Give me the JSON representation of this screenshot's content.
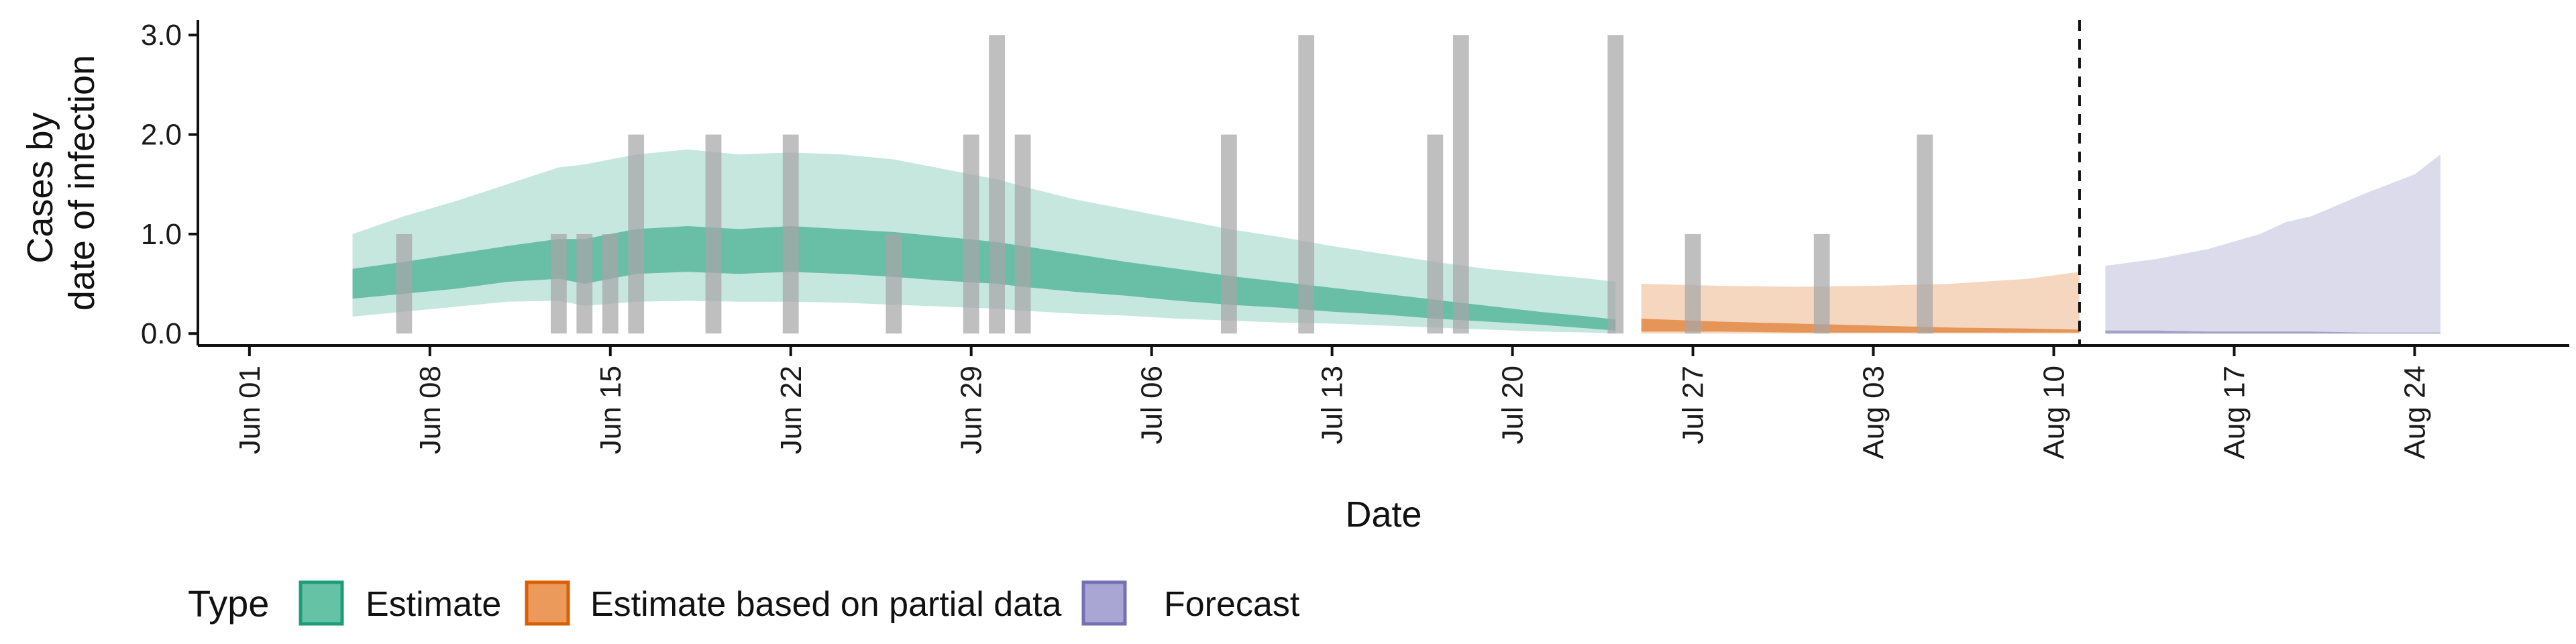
{
  "chart_data": {
    "type": "area",
    "xlabel": "Date",
    "ylabel_lines": [
      "Cases by",
      "date of infection"
    ],
    "xlim": [
      "2020-05-30",
      "2020-08-30"
    ],
    "ylim": [
      -0.12,
      3.15
    ],
    "x_ticks": [
      {
        "date": "2020-06-01",
        "label": "Jun 01"
      },
      {
        "date": "2020-06-08",
        "label": "Jun 08"
      },
      {
        "date": "2020-06-15",
        "label": "Jun 15"
      },
      {
        "date": "2020-06-22",
        "label": "Jun 22"
      },
      {
        "date": "2020-06-29",
        "label": "Jun 29"
      },
      {
        "date": "2020-07-06",
        "label": "Jul 06"
      },
      {
        "date": "2020-07-13",
        "label": "Jul 13"
      },
      {
        "date": "2020-07-20",
        "label": "Jul 20"
      },
      {
        "date": "2020-07-27",
        "label": "Jul 27"
      },
      {
        "date": "2020-08-03",
        "label": "Aug 03"
      },
      {
        "date": "2020-08-10",
        "label": "Aug 10"
      },
      {
        "date": "2020-08-17",
        "label": "Aug 17"
      },
      {
        "date": "2020-08-24",
        "label": "Aug 24"
      }
    ],
    "y_ticks": [
      {
        "value": 0,
        "label": "0.0"
      },
      {
        "value": 1,
        "label": "1.0"
      },
      {
        "value": 2,
        "label": "2.0"
      },
      {
        "value": 3,
        "label": "3.0"
      }
    ],
    "vline_date": "2020-08-11",
    "observed_cases": {
      "color": "#a6a6a6",
      "bars": [
        {
          "date": "2020-06-07",
          "value": 1
        },
        {
          "date": "2020-06-13",
          "value": 1
        },
        {
          "date": "2020-06-14",
          "value": 1
        },
        {
          "date": "2020-06-15",
          "value": 1
        },
        {
          "date": "2020-06-16",
          "value": 2
        },
        {
          "date": "2020-06-19",
          "value": 2
        },
        {
          "date": "2020-06-22",
          "value": 2
        },
        {
          "date": "2020-06-26",
          "value": 1
        },
        {
          "date": "2020-06-29",
          "value": 2
        },
        {
          "date": "2020-06-30",
          "value": 3
        },
        {
          "date": "2020-07-01",
          "value": 2
        },
        {
          "date": "2020-07-09",
          "value": 2
        },
        {
          "date": "2020-07-12",
          "value": 3
        },
        {
          "date": "2020-07-17",
          "value": 2
        },
        {
          "date": "2020-07-18",
          "value": 3
        },
        {
          "date": "2020-07-24",
          "value": 3
        },
        {
          "date": "2020-07-27",
          "value": 1
        },
        {
          "date": "2020-08-01",
          "value": 1
        },
        {
          "date": "2020-08-05",
          "value": 2
        }
      ]
    },
    "series": [
      {
        "name": "Estimate",
        "color": "#1b9e77",
        "dates": [
          "2020-06-05",
          "2020-06-07",
          "2020-06-09",
          "2020-06-11",
          "2020-06-13",
          "2020-06-14",
          "2020-06-16",
          "2020-06-18",
          "2020-06-20",
          "2020-06-22",
          "2020-06-24",
          "2020-06-26",
          "2020-06-28",
          "2020-06-30",
          "2020-07-01",
          "2020-07-03",
          "2020-07-05",
          "2020-07-07",
          "2020-07-09",
          "2020-07-11",
          "2020-07-13",
          "2020-07-15",
          "2020-07-17",
          "2020-07-19",
          "2020-07-21",
          "2020-07-23",
          "2020-07-24"
        ],
        "outer_lower": [
          0.17,
          0.22,
          0.27,
          0.32,
          0.33,
          0.28,
          0.32,
          0.33,
          0.32,
          0.32,
          0.31,
          0.29,
          0.27,
          0.25,
          0.23,
          0.2,
          0.18,
          0.15,
          0.13,
          0.11,
          0.1,
          0.08,
          0.06,
          0.04,
          0.02,
          0.01,
          0.0
        ],
        "outer_upper": [
          1.0,
          1.18,
          1.33,
          1.5,
          1.67,
          1.7,
          1.8,
          1.85,
          1.8,
          1.82,
          1.8,
          1.75,
          1.65,
          1.55,
          1.48,
          1.35,
          1.25,
          1.15,
          1.05,
          0.97,
          0.88,
          0.8,
          0.72,
          0.65,
          0.6,
          0.55,
          0.52
        ],
        "inner_lower": [
          0.35,
          0.4,
          0.45,
          0.52,
          0.55,
          0.5,
          0.6,
          0.62,
          0.6,
          0.62,
          0.6,
          0.57,
          0.53,
          0.5,
          0.47,
          0.42,
          0.38,
          0.33,
          0.29,
          0.26,
          0.22,
          0.19,
          0.15,
          0.12,
          0.09,
          0.05,
          0.03
        ],
        "inner_upper": [
          0.65,
          0.72,
          0.8,
          0.88,
          0.95,
          0.95,
          1.05,
          1.08,
          1.05,
          1.08,
          1.05,
          1.02,
          0.97,
          0.92,
          0.88,
          0.8,
          0.72,
          0.65,
          0.58,
          0.52,
          0.46,
          0.4,
          0.34,
          0.28,
          0.22,
          0.17,
          0.14
        ]
      },
      {
        "name": "Estimate based on partial data",
        "color": "#d95f02",
        "dates": [
          "2020-07-25",
          "2020-07-28",
          "2020-07-31",
          "2020-08-03",
          "2020-08-06",
          "2020-08-09",
          "2020-08-11"
        ],
        "outer_lower": [
          0.0,
          0.0,
          0.0,
          0.0,
          0.0,
          0.0,
          0.0
        ],
        "outer_upper": [
          0.5,
          0.48,
          0.47,
          0.48,
          0.5,
          0.55,
          0.62
        ],
        "inner_lower": [
          0.02,
          0.02,
          0.01,
          0.01,
          0.01,
          0.01,
          0.01
        ],
        "inner_upper": [
          0.15,
          0.12,
          0.1,
          0.08,
          0.06,
          0.05,
          0.04
        ]
      },
      {
        "name": "Forecast",
        "color": "#7570b3",
        "dates": [
          "2020-08-12",
          "2020-08-14",
          "2020-08-16",
          "2020-08-18",
          "2020-08-19",
          "2020-08-20",
          "2020-08-22",
          "2020-08-24",
          "2020-08-25"
        ],
        "outer_lower": [
          0.0,
          0.0,
          0.0,
          0.0,
          0.0,
          0.0,
          0.0,
          0.0,
          0.0
        ],
        "outer_upper": [
          0.68,
          0.75,
          0.85,
          1.0,
          1.12,
          1.18,
          1.4,
          1.6,
          1.8
        ],
        "inner_lower": [
          0.0,
          0.0,
          0.0,
          0.0,
          0.0,
          0.0,
          0.0,
          0.0,
          0.0
        ],
        "inner_upper": [
          0.03,
          0.03,
          0.02,
          0.02,
          0.02,
          0.02,
          0.01,
          0.01,
          0.01
        ]
      }
    ],
    "legend": {
      "title": "Type",
      "position": "bottom",
      "items": [
        {
          "label": "Estimate",
          "fill": "#66c2a5",
          "border": "#1b9e77"
        },
        {
          "label": "Estimate based on partial data",
          "fill": "#ec9a5b",
          "border": "#d95f02"
        },
        {
          "label": "Forecast",
          "fill": "#a9a6d4",
          "border": "#7570b3"
        }
      ]
    }
  }
}
